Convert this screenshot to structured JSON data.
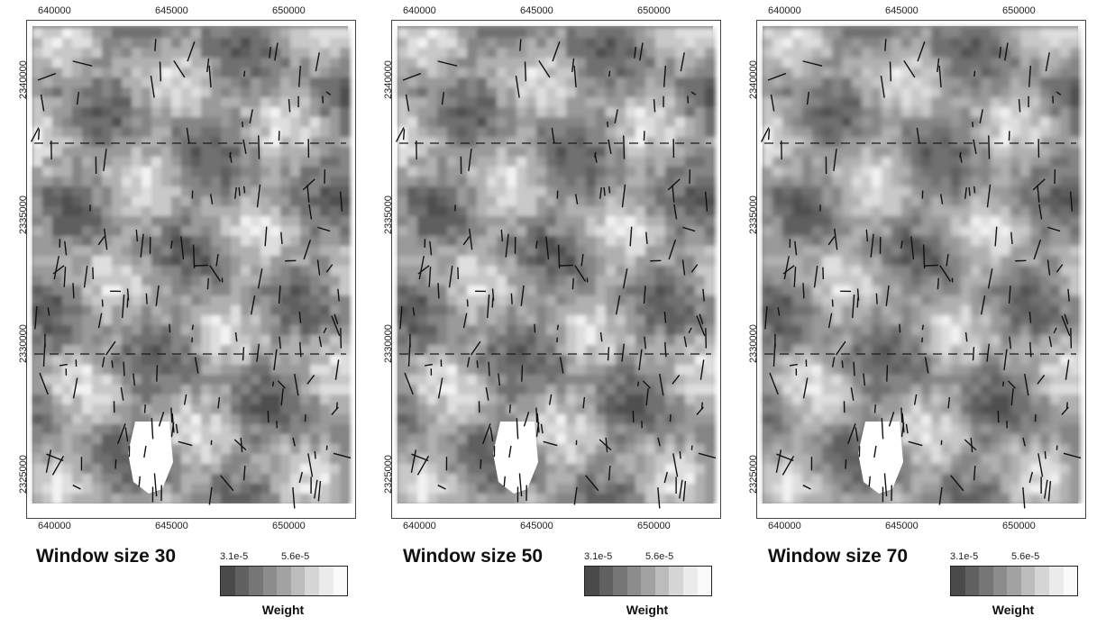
{
  "panels": [
    {
      "title": "Window size 30",
      "x_ticks": [
        "640000",
        "645000",
        "650000"
      ],
      "y_ticks": [
        "2340000",
        "2335000",
        "2330000",
        "2325000"
      ],
      "legend": {
        "min_label": "3.1e-5",
        "mid_label": "5.6e-5",
        "title": "Weight"
      }
    },
    {
      "title": "Window size 50",
      "x_ticks": [
        "640000",
        "645000",
        "650000"
      ],
      "y_ticks": [
        "2340000",
        "2335000",
        "2330000",
        "2325000"
      ],
      "legend": {
        "min_label": "3.1e-5",
        "mid_label": "5.6e-5",
        "title": "Weight"
      }
    },
    {
      "title": "Window size 70",
      "x_ticks": [
        "640000",
        "645000",
        "650000"
      ],
      "y_ticks": [
        "2340000",
        "2335000",
        "2330000",
        "2325000"
      ],
      "legend": {
        "min_label": "3.1e-5",
        "mid_label": "5.6e-5",
        "title": "Weight"
      }
    }
  ],
  "legend_colors": [
    "#4a4a4a",
    "#616161",
    "#767676",
    "#8c8c8c",
    "#a2a2a2",
    "#bcbcbc",
    "#d6d6d6",
    "#ebebeb",
    "#fafafa"
  ]
}
